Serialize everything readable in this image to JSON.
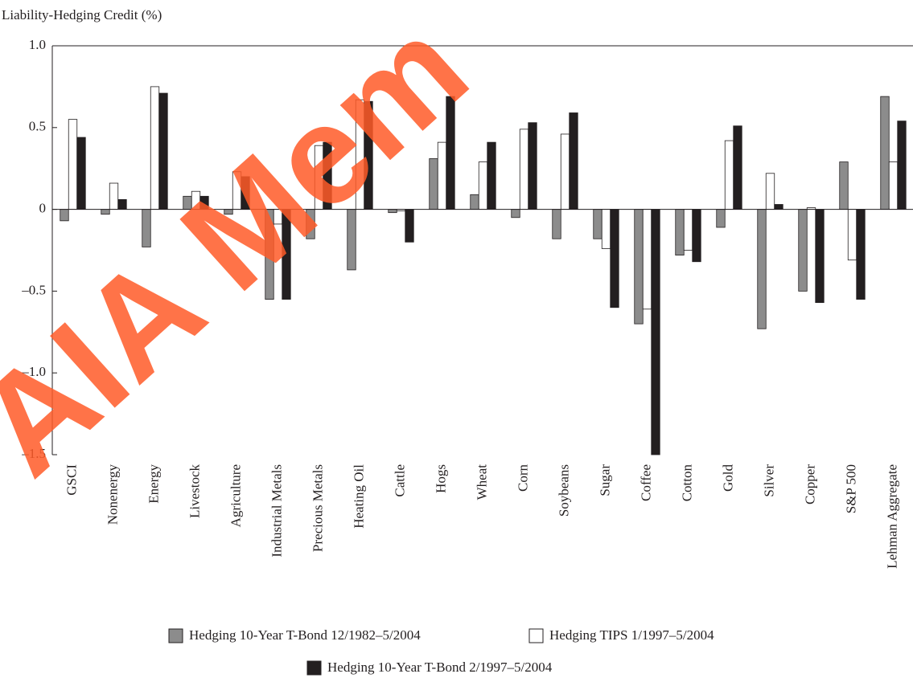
{
  "chart_data": {
    "type": "bar",
    "y_label": "Liability-Hedging Credit (%)",
    "watermark": "AIA Mem",
    "categories": [
      "GSCI",
      "Nonenergy",
      "Energy",
      "Livestock",
      "Agriculture",
      "Industrial Metals",
      "Precious Metals",
      "Heating Oil",
      "Cattle",
      "Hogs",
      "Wheat",
      "Corn",
      "Soybeans",
      "Sugar",
      "Coffee",
      "Cotton",
      "Gold",
      "Silver",
      "Copper",
      "S&P 500",
      "Lehman Aggregate"
    ],
    "series": [
      {
        "name": "Hedging 10-Year T-Bond 12/1982–5/2004",
        "color": "#8c8c8c",
        "values": [
          -0.07,
          -0.03,
          -0.23,
          0.08,
          -0.03,
          -0.55,
          -0.18,
          -0.37,
          -0.02,
          0.31,
          0.09,
          -0.05,
          -0.18,
          -0.18,
          -0.7,
          -0.28,
          -0.11,
          -0.73,
          -0.5,
          0.29,
          0.69
        ]
      },
      {
        "name": "Hedging TIPS 1/1997–5/2004",
        "color": "#ffffff",
        "values": [
          0.55,
          0.16,
          0.75,
          0.11,
          0.23,
          -0.09,
          0.39,
          0.67,
          -0.01,
          0.41,
          0.29,
          0.49,
          0.46,
          -0.24,
          -0.61,
          -0.25,
          0.42,
          0.22,
          0.01,
          -0.31,
          0.29
        ]
      },
      {
        "name": "Hedging 10-Year T-Bond 2/1997–5/2004",
        "color": "#231f20",
        "values": [
          0.44,
          0.06,
          0.71,
          0.08,
          0.2,
          -0.55,
          0.41,
          0.66,
          -0.2,
          0.69,
          0.41,
          0.53,
          0.59,
          -0.6,
          -1.5,
          -0.32,
          0.51,
          0.03,
          -0.57,
          -0.55,
          0.54
        ]
      }
    ],
    "ylim": [
      -1.5,
      1.0
    ],
    "yticks": [
      {
        "value": -1.5,
        "label": "–1.5"
      },
      {
        "value": -1.0,
        "label": "–1.0"
      },
      {
        "value": -0.5,
        "label": "–0.5"
      },
      0,
      0.5,
      {
        "value": 1.0,
        "label": "1.0"
      }
    ]
  }
}
